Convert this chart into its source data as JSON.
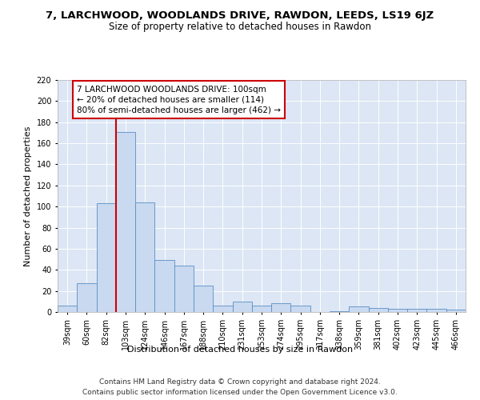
{
  "title": "7, LARCHWOOD, WOODLANDS DRIVE, RAWDON, LEEDS, LS19 6JZ",
  "subtitle": "Size of property relative to detached houses in Rawdon",
  "xlabel": "Distribution of detached houses by size in Rawdon",
  "ylabel": "Number of detached properties",
  "categories": [
    "39sqm",
    "60sqm",
    "82sqm",
    "103sqm",
    "124sqm",
    "146sqm",
    "167sqm",
    "188sqm",
    "210sqm",
    "231sqm",
    "253sqm",
    "274sqm",
    "295sqm",
    "317sqm",
    "338sqm",
    "359sqm",
    "381sqm",
    "402sqm",
    "423sqm",
    "445sqm",
    "466sqm"
  ],
  "values": [
    6,
    27,
    103,
    171,
    104,
    49,
    44,
    25,
    6,
    10,
    6,
    8,
    6,
    0,
    1,
    5,
    4,
    3,
    3,
    3,
    2
  ],
  "bar_color": "#c9d9f0",
  "bar_edge_color": "#5b8ec4",
  "vline_x_index": 3,
  "vline_color": "#cc0000",
  "annotation_text": "7 LARCHWOOD WOODLANDS DRIVE: 100sqm\n← 20% of detached houses are smaller (114)\n80% of semi-detached houses are larger (462) →",
  "annotation_box_color": "#ffffff",
  "annotation_box_edge": "#cc0000",
  "ylim": [
    0,
    220
  ],
  "yticks": [
    0,
    20,
    40,
    60,
    80,
    100,
    120,
    140,
    160,
    180,
    200,
    220
  ],
  "background_color": "#ffffff",
  "plot_bg_color": "#dce6f5",
  "footer1": "Contains HM Land Registry data © Crown copyright and database right 2024.",
  "footer2": "Contains public sector information licensed under the Open Government Licence v3.0.",
  "title_fontsize": 9.5,
  "subtitle_fontsize": 8.5,
  "xlabel_fontsize": 8,
  "ylabel_fontsize": 8,
  "tick_fontsize": 7,
  "annotation_fontsize": 7.5,
  "footer_fontsize": 6.5
}
